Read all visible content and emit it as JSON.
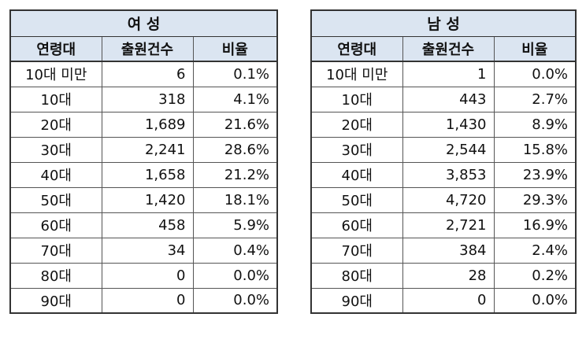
{
  "tables": [
    {
      "title": "여 성",
      "headers": [
        "연령대",
        "출원건수",
        "비율"
      ],
      "rows": [
        [
          "10대 미만",
          "6",
          "0.1%"
        ],
        [
          "10대",
          "318",
          "4.1%"
        ],
        [
          "20대",
          "1,689",
          "21.6%"
        ],
        [
          "30대",
          "2,241",
          "28.6%"
        ],
        [
          "40대",
          "1,658",
          "21.2%"
        ],
        [
          "50대",
          "1,420",
          "18.1%"
        ],
        [
          "60대",
          "458",
          "5.9%"
        ],
        [
          "70대",
          "34",
          "0.4%"
        ],
        [
          "80대",
          "0",
          "0.0%"
        ],
        [
          "90대",
          "0",
          "0.0%"
        ]
      ]
    },
    {
      "title": "남 성",
      "headers": [
        "연령대",
        "출원건수",
        "비율"
      ],
      "rows": [
        [
          "10대 미만",
          "1",
          "0.0%"
        ],
        [
          "10대",
          "443",
          "2.7%"
        ],
        [
          "20대",
          "1,430",
          "8.9%"
        ],
        [
          "30대",
          "2,544",
          "15.8%"
        ],
        [
          "40대",
          "3,853",
          "23.9%"
        ],
        [
          "50대",
          "4,720",
          "29.3%"
        ],
        [
          "60대",
          "2,721",
          "16.9%"
        ],
        [
          "70대",
          "384",
          "2.4%"
        ],
        [
          "80대",
          "28",
          "0.2%"
        ],
        [
          "90대",
          "0",
          "0.0%"
        ]
      ]
    }
  ],
  "colors": {
    "header_bg": "#dbe5f1",
    "border": "#333333"
  }
}
